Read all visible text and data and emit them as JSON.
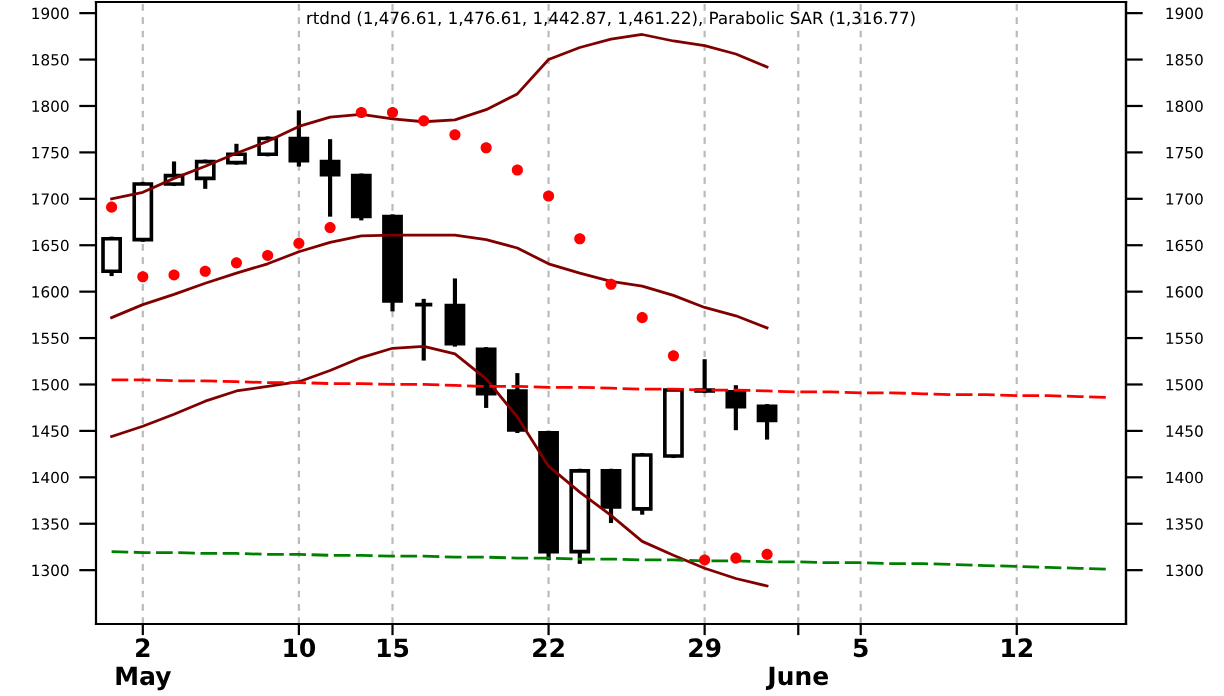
{
  "chart_data": {
    "type": "candlestick",
    "title": "rtdnd (1,476.61, 1,476.61, 1,442.87, 1,461.22), Parabolic SAR (1,316.77)",
    "categories": [
      null,
      "2\nMay",
      null,
      null,
      null,
      null,
      "10",
      null,
      null,
      "15",
      null,
      null,
      null,
      null,
      "22",
      null,
      null,
      null,
      null,
      "29",
      null,
      null,
      "\nJune",
      null,
      "5",
      null,
      null,
      null,
      null,
      "12",
      null,
      null,
      null
    ],
    "ohlc": [
      [
        1622,
        1657,
        1619,
        1657
      ],
      [
        1656,
        1716,
        1656,
        1716
      ],
      [
        1716,
        1738,
        1716,
        1725
      ],
      [
        1722,
        1740,
        1713,
        1740
      ],
      [
        1739,
        1757,
        1739,
        1748
      ],
      [
        1748,
        1765,
        1748,
        1765
      ],
      [
        1765,
        1793,
        1737,
        1741
      ],
      [
        1740,
        1762,
        1683,
        1726
      ],
      [
        1725,
        1725,
        1679,
        1681
      ],
      [
        1681,
        1681,
        1581,
        1590
      ],
      [
        1586,
        1590,
        1528,
        1586
      ],
      [
        1585,
        1612,
        1543,
        1544
      ],
      [
        1538,
        1538,
        1477,
        1490
      ],
      [
        1493,
        1510,
        1450,
        1451
      ],
      [
        1448,
        1448,
        1313,
        1320
      ],
      [
        1320,
        1407,
        1309,
        1407
      ],
      [
        1407,
        1407,
        1353,
        1368
      ],
      [
        1366,
        1424,
        1362,
        1424
      ],
      [
        1423,
        1494,
        1423,
        1494
      ],
      [
        1494,
        1525,
        1493,
        1493
      ],
      [
        1492,
        1497,
        1453,
        1476
      ],
      [
        1476.61,
        1476.61,
        1442.87,
        1461.22
      ],
      null,
      null,
      null,
      null,
      null,
      null,
      null,
      null,
      null,
      null,
      null
    ],
    "colors": [
      "#ffffff",
      "#ffffff",
      "#ffffff",
      "#ffffff",
      "#ffffff",
      "#ffffff",
      "#000000",
      "#000000",
      "#000000",
      "#000000",
      "#000000",
      "#000000",
      "#000000",
      "#000000",
      "#000000",
      "#ffffff",
      "#000000",
      "#ffffff",
      "#ffffff",
      "#000000",
      "#000000",
      "#000000",
      null,
      null,
      null,
      null,
      null,
      null,
      null,
      null,
      null,
      null,
      null
    ],
    "series": [
      {
        "type": "line",
        "color": "#800000",
        "line_style": "solid",
        "values": [
          1700,
          1707,
          1722,
          1735,
          1749,
          1762,
          1778,
          1788,
          1791,
          1786,
          1783,
          1785,
          1796,
          1813,
          1850,
          1863,
          1872,
          1877,
          1870,
          1865,
          1856,
          1842,
          null,
          null,
          null,
          null,
          null,
          null,
          null,
          null,
          null,
          null,
          null
        ]
      },
      {
        "type": "line",
        "color": "#800000",
        "line_style": "solid",
        "values": [
          1572,
          1586,
          1597,
          1609,
          1620,
          1630,
          1643,
          1653,
          1660,
          1661,
          1661,
          1661,
          1656,
          1647,
          1630,
          1620,
          1611,
          1606,
          1596,
          1583,
          1574,
          1561,
          null,
          null,
          null,
          null,
          null,
          null,
          null,
          null,
          null,
          null,
          null
        ]
      },
      {
        "type": "line",
        "color": "#800000",
        "line_style": "solid",
        "values": [
          1444,
          1455,
          1468,
          1482,
          1493,
          1498,
          1503,
          1515,
          1529,
          1539,
          1541,
          1533,
          1506,
          1465,
          1412,
          1384,
          1359,
          1331,
          1316,
          1302,
          1291,
          1283,
          null,
          null,
          null,
          null,
          null,
          null,
          null,
          null,
          null,
          null,
          null
        ]
      },
      {
        "type": "scatter",
        "color": "#ff0000",
        "marker": "circle",
        "values": [
          1691,
          1616,
          1618,
          1622,
          1631,
          1639,
          1652,
          1669,
          1793,
          1793,
          1784,
          1769,
          1755,
          1731,
          1703,
          1657,
          1608,
          1572,
          1531,
          1311,
          1313,
          1317,
          null,
          null,
          null,
          null,
          null,
          null,
          null,
          null,
          null,
          null,
          null
        ]
      },
      {
        "type": "line",
        "color": "#ff0000",
        "line_style": "dashed",
        "values": [
          1505,
          1505,
          1504,
          1504,
          1503,
          1502,
          1502,
          1501,
          1501,
          1500,
          1500,
          1499,
          1498,
          1498,
          1497,
          1497,
          1496,
          1495,
          1495,
          1494,
          1494,
          1493,
          1492,
          1492,
          1491,
          1491,
          1490,
          1489,
          1489,
          1488,
          1488,
          1487,
          1486
        ]
      },
      {
        "type": "line",
        "color": "#008000",
        "line_style": "dashed",
        "values": [
          1320,
          1319,
          1319,
          1318,
          1318,
          1317,
          1317,
          1316,
          1316,
          1315,
          1315,
          1314,
          1314,
          1313,
          1313,
          1312,
          1312,
          1311,
          1311,
          1310,
          1310,
          1309,
          1309,
          1308,
          1308,
          1307,
          1307,
          1306,
          1305,
          1304,
          1303,
          1302,
          1301
        ]
      }
    ],
    "ylim": [
      1242,
      1912
    ],
    "yticks": [
      1300,
      1350,
      1400,
      1450,
      1500,
      1550,
      1600,
      1650,
      1700,
      1750,
      1800,
      1850,
      1900
    ],
    "y2lim": [
      1242,
      1912
    ],
    "y2ticks": [
      1300,
      1350,
      1400,
      1450,
      1500,
      1550,
      1600,
      1650,
      1700,
      1750,
      1800,
      1850,
      1900
    ],
    "grid": "x"
  }
}
